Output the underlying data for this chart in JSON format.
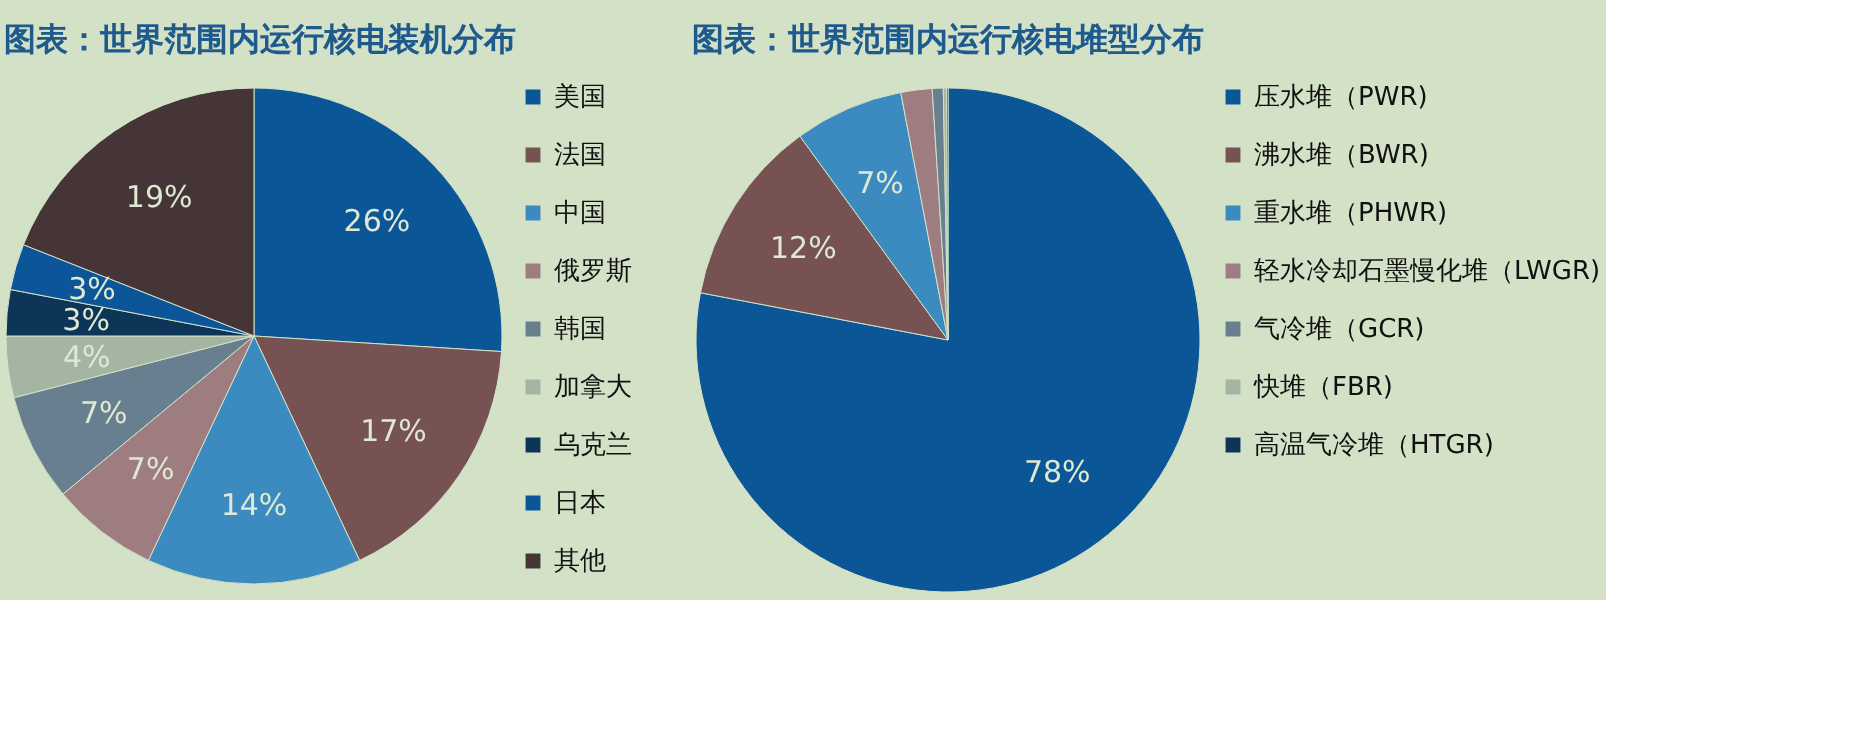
{
  "chart_data": [
    {
      "type": "pie",
      "title": "图表：世界范围内运行核电装机分布",
      "categories": [
        "美国",
        "法国",
        "中国",
        "俄罗斯",
        "韩国",
        "加拿大",
        "乌克兰",
        "日本",
        "其他"
      ],
      "values": [
        26,
        17,
        14,
        7,
        7,
        4,
        3,
        3,
        19
      ],
      "colors": [
        "#0a5697",
        "#765352",
        "#3b8bc0",
        "#9e7d80",
        "#677f8e",
        "#a5b5a3",
        "#0d3558",
        "#0b5598",
        "#463536"
      ],
      "value_labels": [
        "26%",
        "17%",
        "14%",
        "7%",
        "7%",
        "4%",
        "3%",
        "3%",
        "19%"
      ],
      "legend": "right"
    },
    {
      "type": "pie",
      "title": "图表：世界范围内运行核电堆型分布",
      "categories": [
        "压水堆（PWR)",
        "沸水堆（BWR)",
        "重水堆（PHWR)",
        "轻水冷却石墨慢化堆（LWGR)",
        "气冷堆（GCR)",
        "快堆（FBR)",
        "高温气冷堆（HTGR)"
      ],
      "values": [
        78,
        12,
        7,
        2,
        0.7,
        0.2,
        0.1
      ],
      "value_labels": [
        "78%",
        "12%",
        "7%",
        null,
        null,
        null,
        null
      ],
      "colors": [
        "#0a5697",
        "#765352",
        "#3b8bc0",
        "#9e7d80",
        "#677f8e",
        "#a5b5a3",
        "#0d3558"
      ],
      "legend": "right"
    }
  ]
}
